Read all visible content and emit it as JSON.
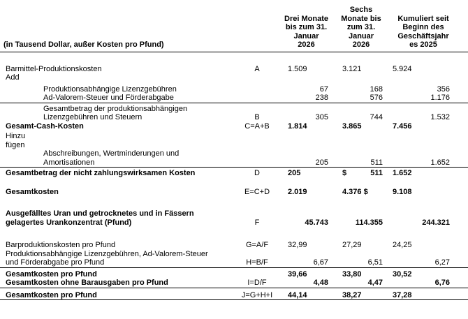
{
  "header": {
    "row_label": "(in Tausend Dollar, außer Kosten pro Pfund)",
    "columns": [
      "Drei Monate\nbis zum 31.\nJanuar\n2026",
      "Sechs\nMonate bis\nzum 31.\nJanuar\n2026",
      "Kumuliert seit\nBeginn des\nGeschäftsjahr\nes 2025"
    ]
  },
  "rows": [
    {
      "label": "Barmittel-Produktionskosten",
      "ref": "A",
      "c1l": "1.509",
      "c1r": "",
      "c2l": "3.121",
      "c2r": "",
      "c3l": "5.924",
      "c3r": ""
    },
    {
      "label": "Add",
      "ref": "",
      "c1l": "",
      "c1r": "",
      "c2l": "",
      "c2r": "",
      "c3l": "",
      "c3r": ""
    },
    {
      "label": "Produktionsabhängige Lizenzgebühren",
      "ref": "",
      "c1l": "",
      "c1r": "67",
      "c2l": "",
      "c2r": "168",
      "c3l": "",
      "c3r": "356"
    },
    {
      "label": "Ad-Valorem-Steuer und Förderabgabe",
      "ref": "",
      "c1l": "",
      "c1r": "238",
      "c2l": "",
      "c2r": "576",
      "c3l": "",
      "c3r": "1.176"
    },
    {
      "label": "Gesamtbetrag der produktionsabhängigen\nLizenzgebühren und Steuern",
      "ref": "B",
      "c1l": "",
      "c1r": "305",
      "c2l": "",
      "c2r": "744",
      "c3l": "",
      "c3r": "1.532"
    },
    {
      "label": "Gesamt-Cash-Kosten",
      "ref": "C=A+B",
      "c1l": "1.814",
      "c1r": "",
      "c2l": "3.865",
      "c2r": "",
      "c3l": "7.456",
      "c3r": ""
    },
    {
      "label": "Hinzu\nfügen",
      "ref": "",
      "c1l": "",
      "c1r": "",
      "c2l": "",
      "c2r": "",
      "c3l": "",
      "c3r": ""
    },
    {
      "label": "Abschreibungen, Wertminderungen und\nAmortisationen",
      "ref": "",
      "c1l": "",
      "c1r": "205",
      "c2l": "",
      "c2r": "511",
      "c3l": "",
      "c3r": "1.652"
    },
    {
      "label": "Gesamtbetrag der nicht zahlungswirksamen Kosten",
      "ref": "D",
      "c1l": "205",
      "c1r": "",
      "c2l": "$",
      "c2r": "511",
      "c3l": "1.652",
      "c3r": ""
    },
    {
      "label": "Gesamtkosten",
      "ref": "E=C+D",
      "c1l": "2.019",
      "c1r": "",
      "c2l": "4.376 $",
      "c2r": "",
      "c3l": "9.108",
      "c3r": ""
    },
    {
      "label": "Ausgefälltes Uran und getrocknetes und in Fässern\ngelagertes Urankonzentrat (Pfund)",
      "ref": "F",
      "c1l": "",
      "c1r": "45.743",
      "c2l": "",
      "c2r": "114.355",
      "c3l": "",
      "c3r": "244.321"
    },
    {
      "label": "Barproduktionskosten pro Pfund",
      "ref": "G=A/F",
      "c1l": "32,99",
      "c1r": "",
      "c2l": "27,29",
      "c2r": "",
      "c3l": "24,25",
      "c3r": ""
    },
    {
      "label": "Produktionsabhängige Lizenzgebühren, Ad-Valorem-Steuer\nund Förderabgabe pro Pfund",
      "ref": "H=B/F",
      "c1l": "",
      "c1r": "6,67",
      "c2l": "",
      "c2r": "6,51",
      "c3l": "",
      "c3r": "6,27"
    },
    {
      "label": "Gesamtkosten pro Pfund",
      "ref": "",
      "c1l": "39,66",
      "c1r": "",
      "c2l": "33,80",
      "c2r": "",
      "c3l": "30,52",
      "c3r": ""
    },
    {
      "label": "Gesamtkosten ohne Barausgaben pro Pfund",
      "ref": "I=D/F",
      "c1l": "",
      "c1r": "4,48",
      "c2l": "",
      "c2r": "4,47",
      "c3l": "",
      "c3r": "6,76"
    },
    {
      "label": "Gesamtkosten pro Pfund",
      "ref": "J=G+H+I",
      "c1l": "44,14",
      "c1r": "",
      "c2l": "38,27",
      "c2r": "",
      "c3l": "37,28",
      "c3r": ""
    }
  ]
}
